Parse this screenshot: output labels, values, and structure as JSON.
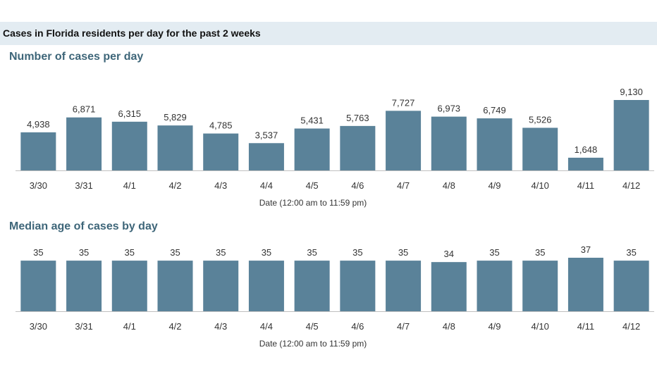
{
  "header": {
    "title": "Cases in Florida residents per day for the past 2 weeks"
  },
  "colors": {
    "bar": "#5a8299",
    "axis": "#bfbfbf",
    "header_band": "#e3ecf2",
    "section_title": "#3e6679"
  },
  "chart_data": [
    {
      "type": "bar",
      "title": "Number of cases per day",
      "xlabel": "Date (12:00 am to 11:59 pm)",
      "ylabel": "",
      "categories": [
        "3/30",
        "3/31",
        "4/1",
        "4/2",
        "4/3",
        "4/4",
        "4/5",
        "4/6",
        "4/7",
        "4/8",
        "4/9",
        "4/10",
        "4/11",
        "4/12"
      ],
      "values": [
        4938,
        6871,
        6315,
        5829,
        4785,
        3537,
        5431,
        5763,
        7727,
        6973,
        6749,
        5526,
        1648,
        9130
      ],
      "labels": [
        "4,938",
        "6,871",
        "6,315",
        "5,829",
        "4,785",
        "3,537",
        "5,431",
        "5,763",
        "7,727",
        "6,973",
        "6,749",
        "5,526",
        "1,648",
        "9,130"
      ],
      "ylim": [
        0,
        9130
      ],
      "grid": false,
      "legend": "none"
    },
    {
      "type": "bar",
      "title": "Median age of cases by day",
      "xlabel": "Date (12:00 am to 11:59 pm)",
      "ylabel": "",
      "categories": [
        "3/30",
        "3/31",
        "4/1",
        "4/2",
        "4/3",
        "4/4",
        "4/5",
        "4/6",
        "4/7",
        "4/8",
        "4/9",
        "4/10",
        "4/11",
        "4/12"
      ],
      "values": [
        35,
        35,
        35,
        35,
        35,
        35,
        35,
        35,
        35,
        34,
        35,
        35,
        37,
        35
      ],
      "labels": [
        "35",
        "35",
        "35",
        "35",
        "35",
        "35",
        "35",
        "35",
        "35",
        "34",
        "35",
        "35",
        "37",
        "35"
      ],
      "ylim": [
        0,
        37
      ],
      "grid": false,
      "legend": "none"
    }
  ]
}
